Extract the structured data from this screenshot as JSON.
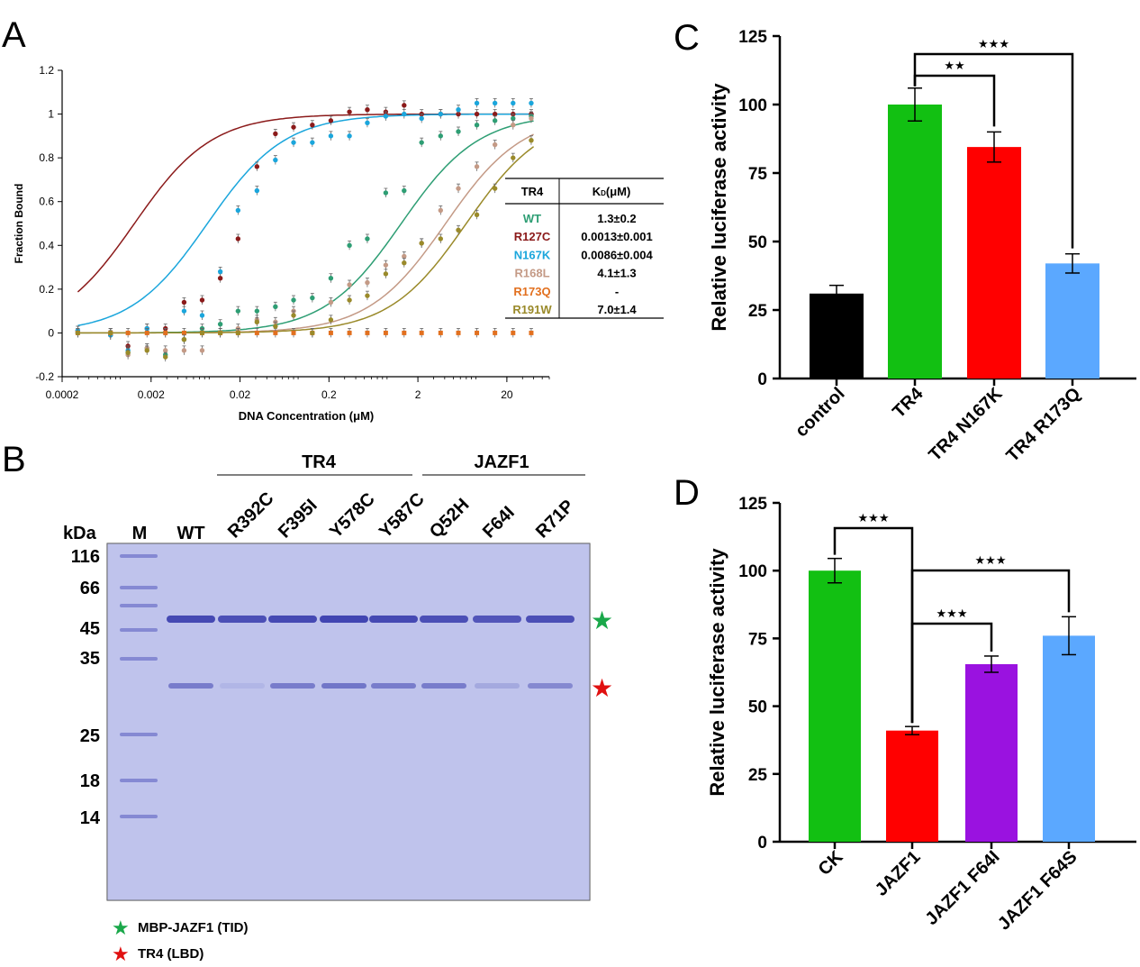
{
  "panel_labels": {
    "a": "A",
    "b": "B",
    "c": "C",
    "d": "D"
  },
  "colors": {
    "WT": "#2e9e74",
    "R127C": "#8b1a1a",
    "N167K": "#1ba6dc",
    "R168L": "#c49a86",
    "R173Q": "#e2701f",
    "R191W": "#9a8a2a",
    "control": "#000000",
    "TR4": "#12c012",
    "TR4_N167K": "#ff0000",
    "TR4_R173Q": "#5ba8ff",
    "CK": "#12c012",
    "JAZF1": "#ff0000",
    "JAZF1_F64I": "#9a12e0",
    "JAZF1_F64S": "#5ba8ff",
    "gel_bg": "#b9bdea",
    "band": "#3e42b0",
    "star_green": "#1aa84a",
    "star_red": "#e01010"
  },
  "panelA": {
    "ylabel": "Fraction Bound",
    "xlabel": "DNA Concentration (μM)",
    "yticks": [
      "-0.2",
      "0",
      "0.2",
      "0.4",
      "0.6",
      "0.8",
      "1",
      "1.2"
    ],
    "xticks": [
      "0.0002",
      "0.002",
      "0.02",
      "0.2",
      "2",
      "20"
    ],
    "table": {
      "header": [
        "TR4",
        "K",
        "D",
        "(μM)"
      ],
      "rows": [
        {
          "name": "WT",
          "kd": "1.3±0.2"
        },
        {
          "name": "R127C",
          "kd": "0.0013±0.001"
        },
        {
          "name": "N167K",
          "kd": "0.0086±0.004"
        },
        {
          "name": "R168L",
          "kd": "4.1±1.3"
        },
        {
          "name": "R173Q",
          "kd": "-"
        },
        {
          "name": "R191W",
          "kd": "7.0±1.4"
        }
      ]
    }
  },
  "chart_data": [
    {
      "type": "scatter",
      "panel": "A",
      "xlabel": "DNA Concentration (μM)",
      "ylabel": "Fraction Bound",
      "xscale": "log",
      "xlim": [
        0.0002,
        60
      ],
      "ylim": [
        -0.2,
        1.2
      ],
      "x": [
        0.0003,
        0.0007,
        0.0011,
        0.0018,
        0.0029,
        0.0047,
        0.0075,
        0.012,
        0.019,
        0.031,
        0.05,
        0.08,
        0.13,
        0.21,
        0.34,
        0.54,
        0.87,
        1.4,
        2.2,
        3.6,
        5.7,
        9.2,
        14.7,
        23.5,
        37.6
      ],
      "series": [
        {
          "name": "R127C",
          "kd": 0.0013,
          "fit": true,
          "y": [
            0.01,
            -0.01,
            -0.06,
            0.02,
            0.02,
            0.14,
            0.15,
            0.25,
            0.43,
            0.76,
            0.91,
            0.94,
            0.95,
            0.97,
            1.01,
            1.02,
            1.01,
            1.04,
            1.0,
            1.0,
            1.0,
            1.0,
            1.0,
            1.0,
            1.0
          ]
        },
        {
          "name": "N167K",
          "kd": 0.0086,
          "fit": true,
          "y": [
            0.01,
            -0.01,
            -0.08,
            0.02,
            0.0,
            0.1,
            0.08,
            0.28,
            0.56,
            0.65,
            0.79,
            0.87,
            0.87,
            0.9,
            0.9,
            0.96,
            0.99,
            1.0,
            0.98,
            1.0,
            1.02,
            1.05,
            1.05,
            1.05,
            1.05
          ]
        },
        {
          "name": "WT",
          "kd": 1.3,
          "fit": true,
          "y": [
            0.0,
            0.0,
            -0.09,
            -0.07,
            -0.1,
            -0.03,
            0.02,
            0.04,
            0.1,
            0.1,
            0.12,
            0.15,
            0.16,
            0.25,
            0.4,
            0.43,
            0.64,
            0.65,
            0.87,
            0.9,
            0.92,
            0.95,
            0.97,
            0.98,
            0.99
          ]
        },
        {
          "name": "R168L",
          "kd": 4.1,
          "fit": true,
          "y": [
            0.0,
            0.0,
            -0.1,
            -0.07,
            -0.08,
            -0.08,
            -0.08,
            0.0,
            0.02,
            0.06,
            0.05,
            0.1,
            0.0,
            0.14,
            0.22,
            0.23,
            0.31,
            0.35,
            0.41,
            0.56,
            0.66,
            0.76,
            0.86,
            0.95,
            0.98
          ]
        },
        {
          "name": "R173Q",
          "kd": null,
          "fit": false,
          "y": [
            0.0,
            0.0,
            0.0,
            0.0,
            0.0,
            0.0,
            0.0,
            0.0,
            0.0,
            0.0,
            0.0,
            0.0,
            0.0,
            0.0,
            0.0,
            0.0,
            0.0,
            0.0,
            0.0,
            0.0,
            0.0,
            0.0,
            0.0,
            0.0,
            0.0
          ]
        },
        {
          "name": "R191W",
          "kd": 7.0,
          "fit": true,
          "y": [
            0.0,
            0.0,
            -0.09,
            -0.08,
            -0.11,
            -0.03,
            0.0,
            0.0,
            0.0,
            0.05,
            0.03,
            0.08,
            0.0,
            0.06,
            0.15,
            0.17,
            0.27,
            0.32,
            0.41,
            0.43,
            0.47,
            0.54,
            0.66,
            0.8,
            0.88
          ]
        }
      ]
    },
    {
      "type": "bar",
      "panel": "C",
      "ylabel": "Relative luciferase activity",
      "ylim": [
        0,
        125
      ],
      "yticks": [
        "0",
        "25",
        "50",
        "75",
        "100",
        "125"
      ],
      "categories": [
        "control",
        "TR4",
        "TR4 N167K",
        "TR4 R173Q"
      ],
      "values": [
        31,
        100,
        84.5,
        42
      ],
      "errors": [
        3,
        6,
        5.5,
        3.5
      ],
      "significance": [
        {
          "from": 1,
          "to": 3,
          "label": "★★★"
        },
        {
          "from": 1,
          "to": 2,
          "label": "★★"
        }
      ]
    },
    {
      "type": "bar",
      "panel": "D",
      "ylabel": "Relative luciferase activity",
      "ylim": [
        0,
        125
      ],
      "yticks": [
        "0",
        "25",
        "50",
        "75",
        "100",
        "125"
      ],
      "categories": [
        "CK",
        "JAZF1",
        "JAZF1 F64I",
        "JAZF1 F64S"
      ],
      "values": [
        100,
        41,
        65.5,
        76
      ],
      "errors": [
        4.5,
        1.5,
        3,
        7
      ],
      "significance": [
        {
          "from": 0,
          "to": 1,
          "label": "★★★"
        },
        {
          "from": 1,
          "to": 3,
          "label": "★★★"
        },
        {
          "from": 1,
          "to": 2,
          "label": "★★★"
        }
      ]
    }
  ],
  "panelB": {
    "group_tr4": "TR4",
    "group_jazf1": "JAZF1",
    "kda_label": "kDa",
    "marker_label": "M",
    "lanes": [
      "WT",
      "R392C",
      "F395I",
      "Y578C",
      "Y587C",
      "Q52H",
      "F64I",
      "R71P"
    ],
    "markers": [
      "116",
      "66",
      "45",
      "35",
      "25",
      "18",
      "14"
    ],
    "legend": [
      {
        "star": "★",
        "text": "MBP-JAZF1 (TID)"
      },
      {
        "star": "★",
        "text": "TR4 (LBD)"
      }
    ]
  }
}
